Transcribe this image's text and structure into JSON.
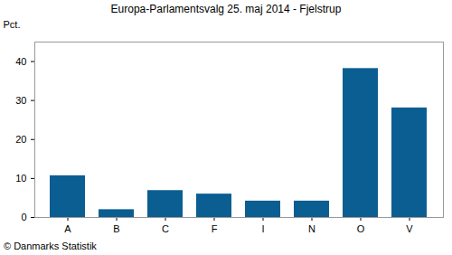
{
  "chart_data": {
    "type": "bar",
    "title": "Europa-Parlamentsvalg 25. maj 2014 - Fjelstrup",
    "y_label": "Pct.",
    "caption": "© Danmarks Statistik",
    "categories": [
      "A",
      "B",
      "C",
      "F",
      "I",
      "N",
      "O",
      "V"
    ],
    "values": [
      10.7,
      2.0,
      6.9,
      6.0,
      4.2,
      4.2,
      38.2,
      28.1
    ],
    "color": "#0b5e91",
    "ylim": [
      0,
      45
    ],
    "yticks": [
      0,
      10,
      20,
      30,
      40
    ],
    "grid": false
  }
}
